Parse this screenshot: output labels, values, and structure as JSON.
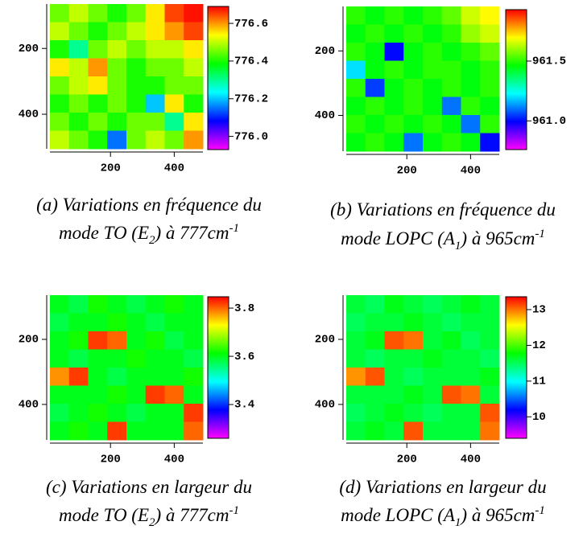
{
  "chart_data": [
    {
      "type": "heatmap",
      "xlim": [
        10,
        490
      ],
      "ylim": [
        505,
        65
      ],
      "xticks": [
        200,
        400
      ],
      "yticks": [
        200,
        400
      ],
      "clim": [
        775.93,
        776.69
      ],
      "cticks": [
        776.6,
        776.4,
        776.2,
        {
          "value": 776,
          "label": "776.0"
        }
      ],
      "z": [
        [
          776.45,
          776.5,
          776.45,
          776.4,
          776.45,
          776.55,
          776.65,
          776.68
        ],
        [
          776.5,
          776.45,
          776.4,
          776.45,
          776.5,
          776.55,
          776.6,
          776.65
        ],
        [
          776.4,
          776.3,
          776.45,
          776.5,
          776.45,
          776.5,
          776.5,
          776.55
        ],
        [
          776.55,
          776.5,
          776.6,
          776.45,
          776.4,
          776.45,
          776.45,
          776.5
        ],
        [
          776.45,
          776.5,
          776.55,
          776.45,
          776.4,
          776.4,
          776.45,
          776.45
        ],
        [
          776.4,
          776.45,
          776.4,
          776.45,
          776.4,
          776.2,
          776.55,
          776.4
        ],
        [
          776.45,
          776.4,
          776.45,
          776.4,
          776.45,
          776.45,
          776.3,
          776.55
        ],
        [
          776.5,
          776.45,
          776.4,
          776.15,
          776.45,
          776.5,
          776.45,
          776.6
        ]
      ],
      "caption": [
        "(a) Variations en fréquence du",
        "mode TO (E",
        "2",
        ") à 777cm",
        "-1"
      ]
    },
    {
      "type": "heatmap",
      "xlim": [
        10,
        490
      ],
      "ylim": [
        511,
        62
      ],
      "xticks": [
        200,
        400
      ],
      "yticks": [
        200,
        400
      ],
      "clim": [
        960.76,
        961.93
      ],
      "cticks": [
        961.5,
        {
          "value": 961,
          "label": "961.0"
        }
      ],
      "z": [
        [
          961.5,
          961.45,
          961.5,
          961.45,
          961.5,
          961.55,
          961.65,
          961.7
        ],
        [
          961.45,
          961.5,
          961.45,
          961.5,
          961.45,
          961.5,
          961.6,
          961.65
        ],
        [
          961.5,
          961.45,
          961.0,
          961.45,
          961.5,
          961.45,
          961.5,
          961.55
        ],
        [
          961.2,
          961.45,
          961.5,
          961.45,
          961.5,
          961.5,
          961.45,
          961.5
        ],
        [
          961.5,
          961.05,
          961.45,
          961.5,
          961.45,
          961.5,
          961.45,
          961.5
        ],
        [
          961.45,
          961.5,
          961.45,
          961.5,
          961.45,
          961.1,
          961.5,
          961.45
        ],
        [
          961.5,
          961.45,
          961.5,
          961.45,
          961.5,
          961.45,
          961.1,
          961.5
        ],
        [
          961.45,
          961.5,
          961.45,
          961.1,
          961.45,
          961.5,
          961.45,
          961.0
        ]
      ],
      "caption": [
        "(b) Variations en fréquence du",
        "mode LOPC (A",
        "1",
        ") à 965cm",
        "-1"
      ]
    },
    {
      "type": "heatmap",
      "xlim": [
        10,
        490
      ],
      "ylim": [
        509,
        64
      ],
      "xticks": [
        200,
        400
      ],
      "yticks": [
        200,
        400
      ],
      "clim": [
        3.26,
        3.847
      ],
      "cticks": [
        3.8,
        3.6,
        3.4
      ],
      "z": [
        [
          3.6,
          3.58,
          3.62,
          3.6,
          3.58,
          3.6,
          3.62,
          3.6
        ],
        [
          3.58,
          3.6,
          3.6,
          3.62,
          3.6,
          3.58,
          3.6,
          3.6
        ],
        [
          3.6,
          3.62,
          3.82,
          3.8,
          3.6,
          3.62,
          3.58,
          3.6
        ],
        [
          3.6,
          3.58,
          3.6,
          3.6,
          3.62,
          3.6,
          3.6,
          3.58
        ],
        [
          3.78,
          3.82,
          3.6,
          3.58,
          3.6,
          3.6,
          3.6,
          3.62
        ],
        [
          3.6,
          3.6,
          3.6,
          3.62,
          3.6,
          3.82,
          3.8,
          3.6
        ],
        [
          3.58,
          3.6,
          3.62,
          3.6,
          3.58,
          3.6,
          3.6,
          3.82
        ],
        [
          3.6,
          3.62,
          3.6,
          3.82,
          3.6,
          3.6,
          3.6,
          3.8
        ]
      ],
      "caption": [
        "(c) Variations en largeur du",
        "mode TO (E",
        "2",
        ") à 777cm",
        "-1"
      ]
    },
    {
      "type": "heatmap",
      "xlim": [
        10,
        490
      ],
      "ylim": [
        509,
        64
      ],
      "xticks": [
        200,
        400
      ],
      "yticks": [
        200,
        400
      ],
      "clim": [
        9.4,
        13.36
      ],
      "cticks": [
        13,
        12,
        11,
        10
      ],
      "z": [
        [
          11.6,
          11.5,
          11.7,
          11.6,
          11.5,
          11.6,
          11.7,
          11.6
        ],
        [
          11.5,
          11.6,
          11.6,
          11.7,
          11.6,
          11.5,
          11.6,
          11.6
        ],
        [
          11.6,
          11.7,
          13.1,
          13.0,
          11.6,
          11.7,
          11.5,
          11.6
        ],
        [
          11.6,
          11.5,
          11.6,
          11.6,
          11.7,
          11.6,
          11.6,
          11.5
        ],
        [
          12.9,
          13.1,
          11.6,
          11.5,
          11.6,
          11.6,
          11.6,
          11.7
        ],
        [
          11.6,
          11.6,
          11.6,
          11.7,
          11.6,
          13.1,
          13.0,
          11.6
        ],
        [
          11.5,
          11.6,
          11.7,
          11.6,
          11.5,
          11.6,
          11.6,
          13.1
        ],
        [
          11.6,
          11.7,
          11.6,
          13.1,
          11.6,
          11.6,
          11.6,
          13.0
        ]
      ],
      "caption": [
        "(d) Variations en largeur du",
        "mode LOPC (A",
        "1",
        ") à 965cm",
        "-1"
      ]
    }
  ]
}
